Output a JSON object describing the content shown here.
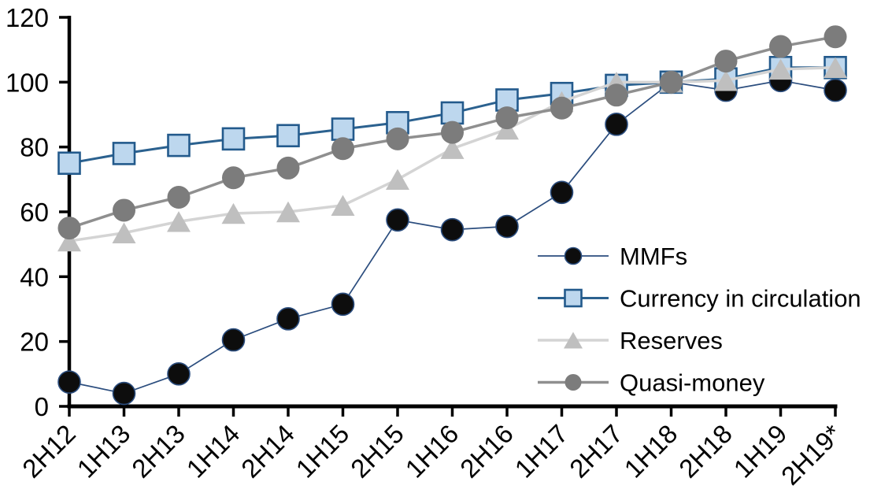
{
  "chart_data": {
    "type": "line",
    "title": "",
    "xlabel": "",
    "ylabel": "",
    "grid": false,
    "legend_position": "inside-right",
    "ylim": [
      0,
      120
    ],
    "yticks": [
      0,
      20,
      40,
      60,
      80,
      100,
      120
    ],
    "categories": [
      "2H12",
      "1H13",
      "2H13",
      "1H14",
      "2H14",
      "1H15",
      "2H15",
      "1H16",
      "2H16",
      "1H17",
      "2H17",
      "1H18",
      "2H18",
      "1H19",
      "2H19*"
    ],
    "series": [
      {
        "name": "MMFs",
        "marker": "circle",
        "marker_fill": "#0d0d0d",
        "marker_stroke": "#2b4d7e",
        "line_color": "#2b4d7e",
        "line_width": 1.7,
        "marker_size": 28,
        "values": [
          7.5,
          4,
          10,
          20.5,
          27,
          31.5,
          57.5,
          54.5,
          55.5,
          66,
          87,
          100,
          97.5,
          100.5,
          97.5
        ]
      },
      {
        "name": "Currency in circulation",
        "marker": "square",
        "marker_fill": "#bdd7ee",
        "marker_stroke": "#235a8c",
        "line_color": "#2b618f",
        "line_width": 3,
        "marker_size": 27,
        "values": [
          75,
          78,
          80.5,
          82.5,
          83.5,
          85.5,
          87.5,
          90.5,
          94.5,
          96.5,
          99,
          100,
          101,
          104.5,
          104.5
        ]
      },
      {
        "name": "Reserves",
        "marker": "triangle",
        "marker_fill": "#bfbfbf",
        "marker_stroke": "none",
        "line_color": "#d4d4d4",
        "line_width": 3.5,
        "marker_size": 30,
        "values": [
          51,
          53.5,
          57,
          59.5,
          60,
          62,
          70,
          79.5,
          85.5,
          94,
          100,
          100,
          100.5,
          104,
          104.5
        ]
      },
      {
        "name": "Quasi-money",
        "marker": "circle",
        "marker_fill": "#7c7c7c",
        "marker_stroke": "none",
        "line_color": "#8f8f8f",
        "line_width": 3.5,
        "marker_size": 29,
        "values": [
          55,
          60.5,
          64.5,
          70.5,
          73.5,
          79.5,
          82.5,
          84.5,
          89,
          92,
          96,
          100,
          106.5,
          111,
          114
        ]
      }
    ],
    "axis_color": "#000000"
  }
}
